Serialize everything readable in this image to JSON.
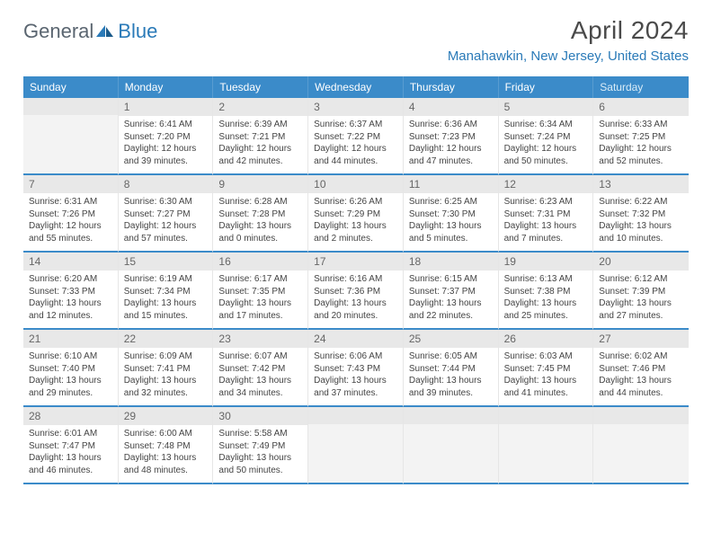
{
  "logo": {
    "text1": "General",
    "text2": "Blue"
  },
  "title": "April 2024",
  "location": "Manahawkin, New Jersey, United States",
  "weekday_bar_color": "#3b8bc9",
  "weekdays": [
    "Sunday",
    "Monday",
    "Tuesday",
    "Wednesday",
    "Thursday",
    "Friday",
    "Saturday"
  ],
  "first_weekday_index": 1,
  "days_in_month": 30,
  "cell_bg_header": "#e8e8e8",
  "days": {
    "1": {
      "sunrise": "6:41 AM",
      "sunset": "7:20 PM",
      "daylight": "12 hours and 39 minutes."
    },
    "2": {
      "sunrise": "6:39 AM",
      "sunset": "7:21 PM",
      "daylight": "12 hours and 42 minutes."
    },
    "3": {
      "sunrise": "6:37 AM",
      "sunset": "7:22 PM",
      "daylight": "12 hours and 44 minutes."
    },
    "4": {
      "sunrise": "6:36 AM",
      "sunset": "7:23 PM",
      "daylight": "12 hours and 47 minutes."
    },
    "5": {
      "sunrise": "6:34 AM",
      "sunset": "7:24 PM",
      "daylight": "12 hours and 50 minutes."
    },
    "6": {
      "sunrise": "6:33 AM",
      "sunset": "7:25 PM",
      "daylight": "12 hours and 52 minutes."
    },
    "7": {
      "sunrise": "6:31 AM",
      "sunset": "7:26 PM",
      "daylight": "12 hours and 55 minutes."
    },
    "8": {
      "sunrise": "6:30 AM",
      "sunset": "7:27 PM",
      "daylight": "12 hours and 57 minutes."
    },
    "9": {
      "sunrise": "6:28 AM",
      "sunset": "7:28 PM",
      "daylight": "13 hours and 0 minutes."
    },
    "10": {
      "sunrise": "6:26 AM",
      "sunset": "7:29 PM",
      "daylight": "13 hours and 2 minutes."
    },
    "11": {
      "sunrise": "6:25 AM",
      "sunset": "7:30 PM",
      "daylight": "13 hours and 5 minutes."
    },
    "12": {
      "sunrise": "6:23 AM",
      "sunset": "7:31 PM",
      "daylight": "13 hours and 7 minutes."
    },
    "13": {
      "sunrise": "6:22 AM",
      "sunset": "7:32 PM",
      "daylight": "13 hours and 10 minutes."
    },
    "14": {
      "sunrise": "6:20 AM",
      "sunset": "7:33 PM",
      "daylight": "13 hours and 12 minutes."
    },
    "15": {
      "sunrise": "6:19 AM",
      "sunset": "7:34 PM",
      "daylight": "13 hours and 15 minutes."
    },
    "16": {
      "sunrise": "6:17 AM",
      "sunset": "7:35 PM",
      "daylight": "13 hours and 17 minutes."
    },
    "17": {
      "sunrise": "6:16 AM",
      "sunset": "7:36 PM",
      "daylight": "13 hours and 20 minutes."
    },
    "18": {
      "sunrise": "6:15 AM",
      "sunset": "7:37 PM",
      "daylight": "13 hours and 22 minutes."
    },
    "19": {
      "sunrise": "6:13 AM",
      "sunset": "7:38 PM",
      "daylight": "13 hours and 25 minutes."
    },
    "20": {
      "sunrise": "6:12 AM",
      "sunset": "7:39 PM",
      "daylight": "13 hours and 27 minutes."
    },
    "21": {
      "sunrise": "6:10 AM",
      "sunset": "7:40 PM",
      "daylight": "13 hours and 29 minutes."
    },
    "22": {
      "sunrise": "6:09 AM",
      "sunset": "7:41 PM",
      "daylight": "13 hours and 32 minutes."
    },
    "23": {
      "sunrise": "6:07 AM",
      "sunset": "7:42 PM",
      "daylight": "13 hours and 34 minutes."
    },
    "24": {
      "sunrise": "6:06 AM",
      "sunset": "7:43 PM",
      "daylight": "13 hours and 37 minutes."
    },
    "25": {
      "sunrise": "6:05 AM",
      "sunset": "7:44 PM",
      "daylight": "13 hours and 39 minutes."
    },
    "26": {
      "sunrise": "6:03 AM",
      "sunset": "7:45 PM",
      "daylight": "13 hours and 41 minutes."
    },
    "27": {
      "sunrise": "6:02 AM",
      "sunset": "7:46 PM",
      "daylight": "13 hours and 44 minutes."
    },
    "28": {
      "sunrise": "6:01 AM",
      "sunset": "7:47 PM",
      "daylight": "13 hours and 46 minutes."
    },
    "29": {
      "sunrise": "6:00 AM",
      "sunset": "7:48 PM",
      "daylight": "13 hours and 48 minutes."
    },
    "30": {
      "sunrise": "5:58 AM",
      "sunset": "7:49 PM",
      "daylight": "13 hours and 50 minutes."
    }
  },
  "labels": {
    "sunrise": "Sunrise:",
    "sunset": "Sunset:",
    "daylight": "Daylight:"
  }
}
